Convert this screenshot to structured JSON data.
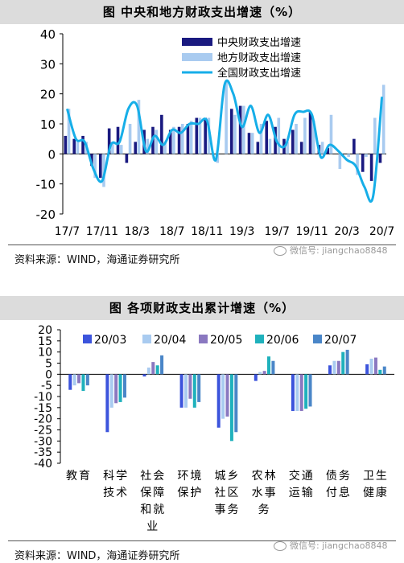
{
  "chart1": {
    "title": "图  中央和地方财政支出增速（%）",
    "source": "资料来源：WIND，海通证券研究所",
    "watermark": "微信号: jiangchao8848",
    "colors": {
      "central": "#1a1a80",
      "local": "#a9cbf0",
      "national": "#16aee8"
    },
    "chart_data": {
      "type": "bar",
      "title": "图  中央和地方财政支出增速（%）",
      "xlabel": "",
      "ylabel": "",
      "ylim": [
        -20,
        40
      ],
      "yticks": [
        40,
        30,
        20,
        10,
        0,
        -10,
        -20
      ],
      "xtick_labels": [
        "17/7",
        "17/11",
        "18/3",
        "18/7",
        "18/11",
        "19/3",
        "19/7",
        "19/11",
        "20/3",
        "20/7"
      ],
      "x": [
        "17/7",
        "17/8",
        "17/9",
        "17/10",
        "17/11",
        "17/12",
        "18/1",
        "18/2",
        "18/3",
        "18/4",
        "18/5",
        "18/6",
        "18/7",
        "18/8",
        "18/9",
        "18/10",
        "18/11",
        "18/12",
        "19/1",
        "19/2",
        "19/3",
        "19/4",
        "19/5",
        "19/6",
        "19/7",
        "19/8",
        "19/9",
        "19/10",
        "19/11",
        "19/12",
        "20/1",
        "20/2",
        "20/3",
        "20/4",
        "20/5",
        "20/6",
        "20/7"
      ],
      "series": [
        {
          "name": "中央财政支出增速",
          "type": "bar",
          "values": [
            6,
            5,
            6,
            -4,
            -8,
            8.5,
            9,
            -3,
            4,
            8,
            9,
            13,
            8,
            9,
            10,
            12,
            12,
            null,
            null,
            15,
            16,
            7,
            4,
            11,
            9,
            5,
            8,
            4,
            14,
            3,
            2,
            null,
            null,
            5,
            -6,
            -9,
            -3
          ]
        },
        {
          "name": "地方财政支出增速",
          "type": "bar",
          "values": [
            15,
            4,
            4,
            -8,
            -11,
            4,
            3,
            10,
            18,
            5,
            8,
            4,
            9,
            10,
            11,
            12,
            12,
            -3,
            24,
            13,
            16,
            7,
            10,
            5,
            12,
            4,
            10,
            12,
            11,
            4,
            13,
            -5,
            -1,
            -7,
            -1,
            12,
            23
          ]
        },
        {
          "name": "全国财政支出增速",
          "type": "line",
          "values": [
            15,
            5,
            4,
            -5,
            -9,
            3,
            4,
            15,
            16,
            1,
            6,
            3,
            8,
            7,
            10,
            10,
            11,
            -2,
            23,
            20,
            9,
            16,
            7,
            13,
            4,
            3,
            13,
            14,
            13,
            -1,
            3,
            1,
            -2,
            -4,
            -11,
            -14,
            19
          ]
        }
      ],
      "legend_position": "top-right"
    }
  },
  "chart2": {
    "title": "图  各项财政支出累计增速（%）",
    "source": "资料来源：WIND，海通证券研究所",
    "watermark": "微信号: jiangchao8848",
    "chart_data": {
      "type": "bar",
      "title": "图  各项财政支出累计增速（%）",
      "xlabel": "",
      "ylabel": "",
      "ylim": [
        -40,
        20
      ],
      "yticks": [
        20,
        15,
        10,
        5,
        0,
        -5,
        -10,
        -15,
        -20,
        -25,
        -30,
        -35,
        -40
      ],
      "categories": [
        "教育",
        "科学技术",
        "社会保障和就业",
        "环境保护",
        "城乡社区事务",
        "农林水事务",
        "交通运输",
        "债务付息",
        "卫生健康"
      ],
      "category_lines": [
        [
          "教育"
        ],
        [
          "科学",
          "技术"
        ],
        [
          "社会",
          "保障",
          "和就",
          "业"
        ],
        [
          "环境",
          "保护"
        ],
        [
          "城乡",
          "社区",
          "事务"
        ],
        [
          "农林",
          "水事",
          "务"
        ],
        [
          "交通",
          "运输"
        ],
        [
          "债务",
          "付息"
        ],
        [
          "卫生",
          "健康"
        ]
      ],
      "series": [
        {
          "name": "20/03",
          "color": "#3c54dc",
          "values": [
            -7,
            -26,
            -1,
            -15,
            -24,
            -3,
            -16.5,
            4,
            4.5
          ]
        },
        {
          "name": "20/04",
          "color": "#a9cbf0",
          "values": [
            -5,
            -15,
            3,
            -15,
            -20,
            1,
            -16.5,
            6,
            7
          ]
        },
        {
          "name": "20/05",
          "color": "#8a78c0",
          "values": [
            -4,
            -13,
            5.5,
            -11,
            -19,
            1.5,
            -16.5,
            6,
            7.5
          ]
        },
        {
          "name": "20/06",
          "color": "#1fb1bc",
          "values": [
            -7.5,
            -12.5,
            4,
            -15,
            -30,
            8,
            -15.5,
            10,
            2
          ]
        },
        {
          "name": "20/07",
          "color": "#4a86c8",
          "values": [
            -5,
            -10.5,
            8.5,
            -12.5,
            -26,
            6,
            -14.5,
            11,
            3.5
          ]
        }
      ],
      "legend_position": "top"
    }
  }
}
